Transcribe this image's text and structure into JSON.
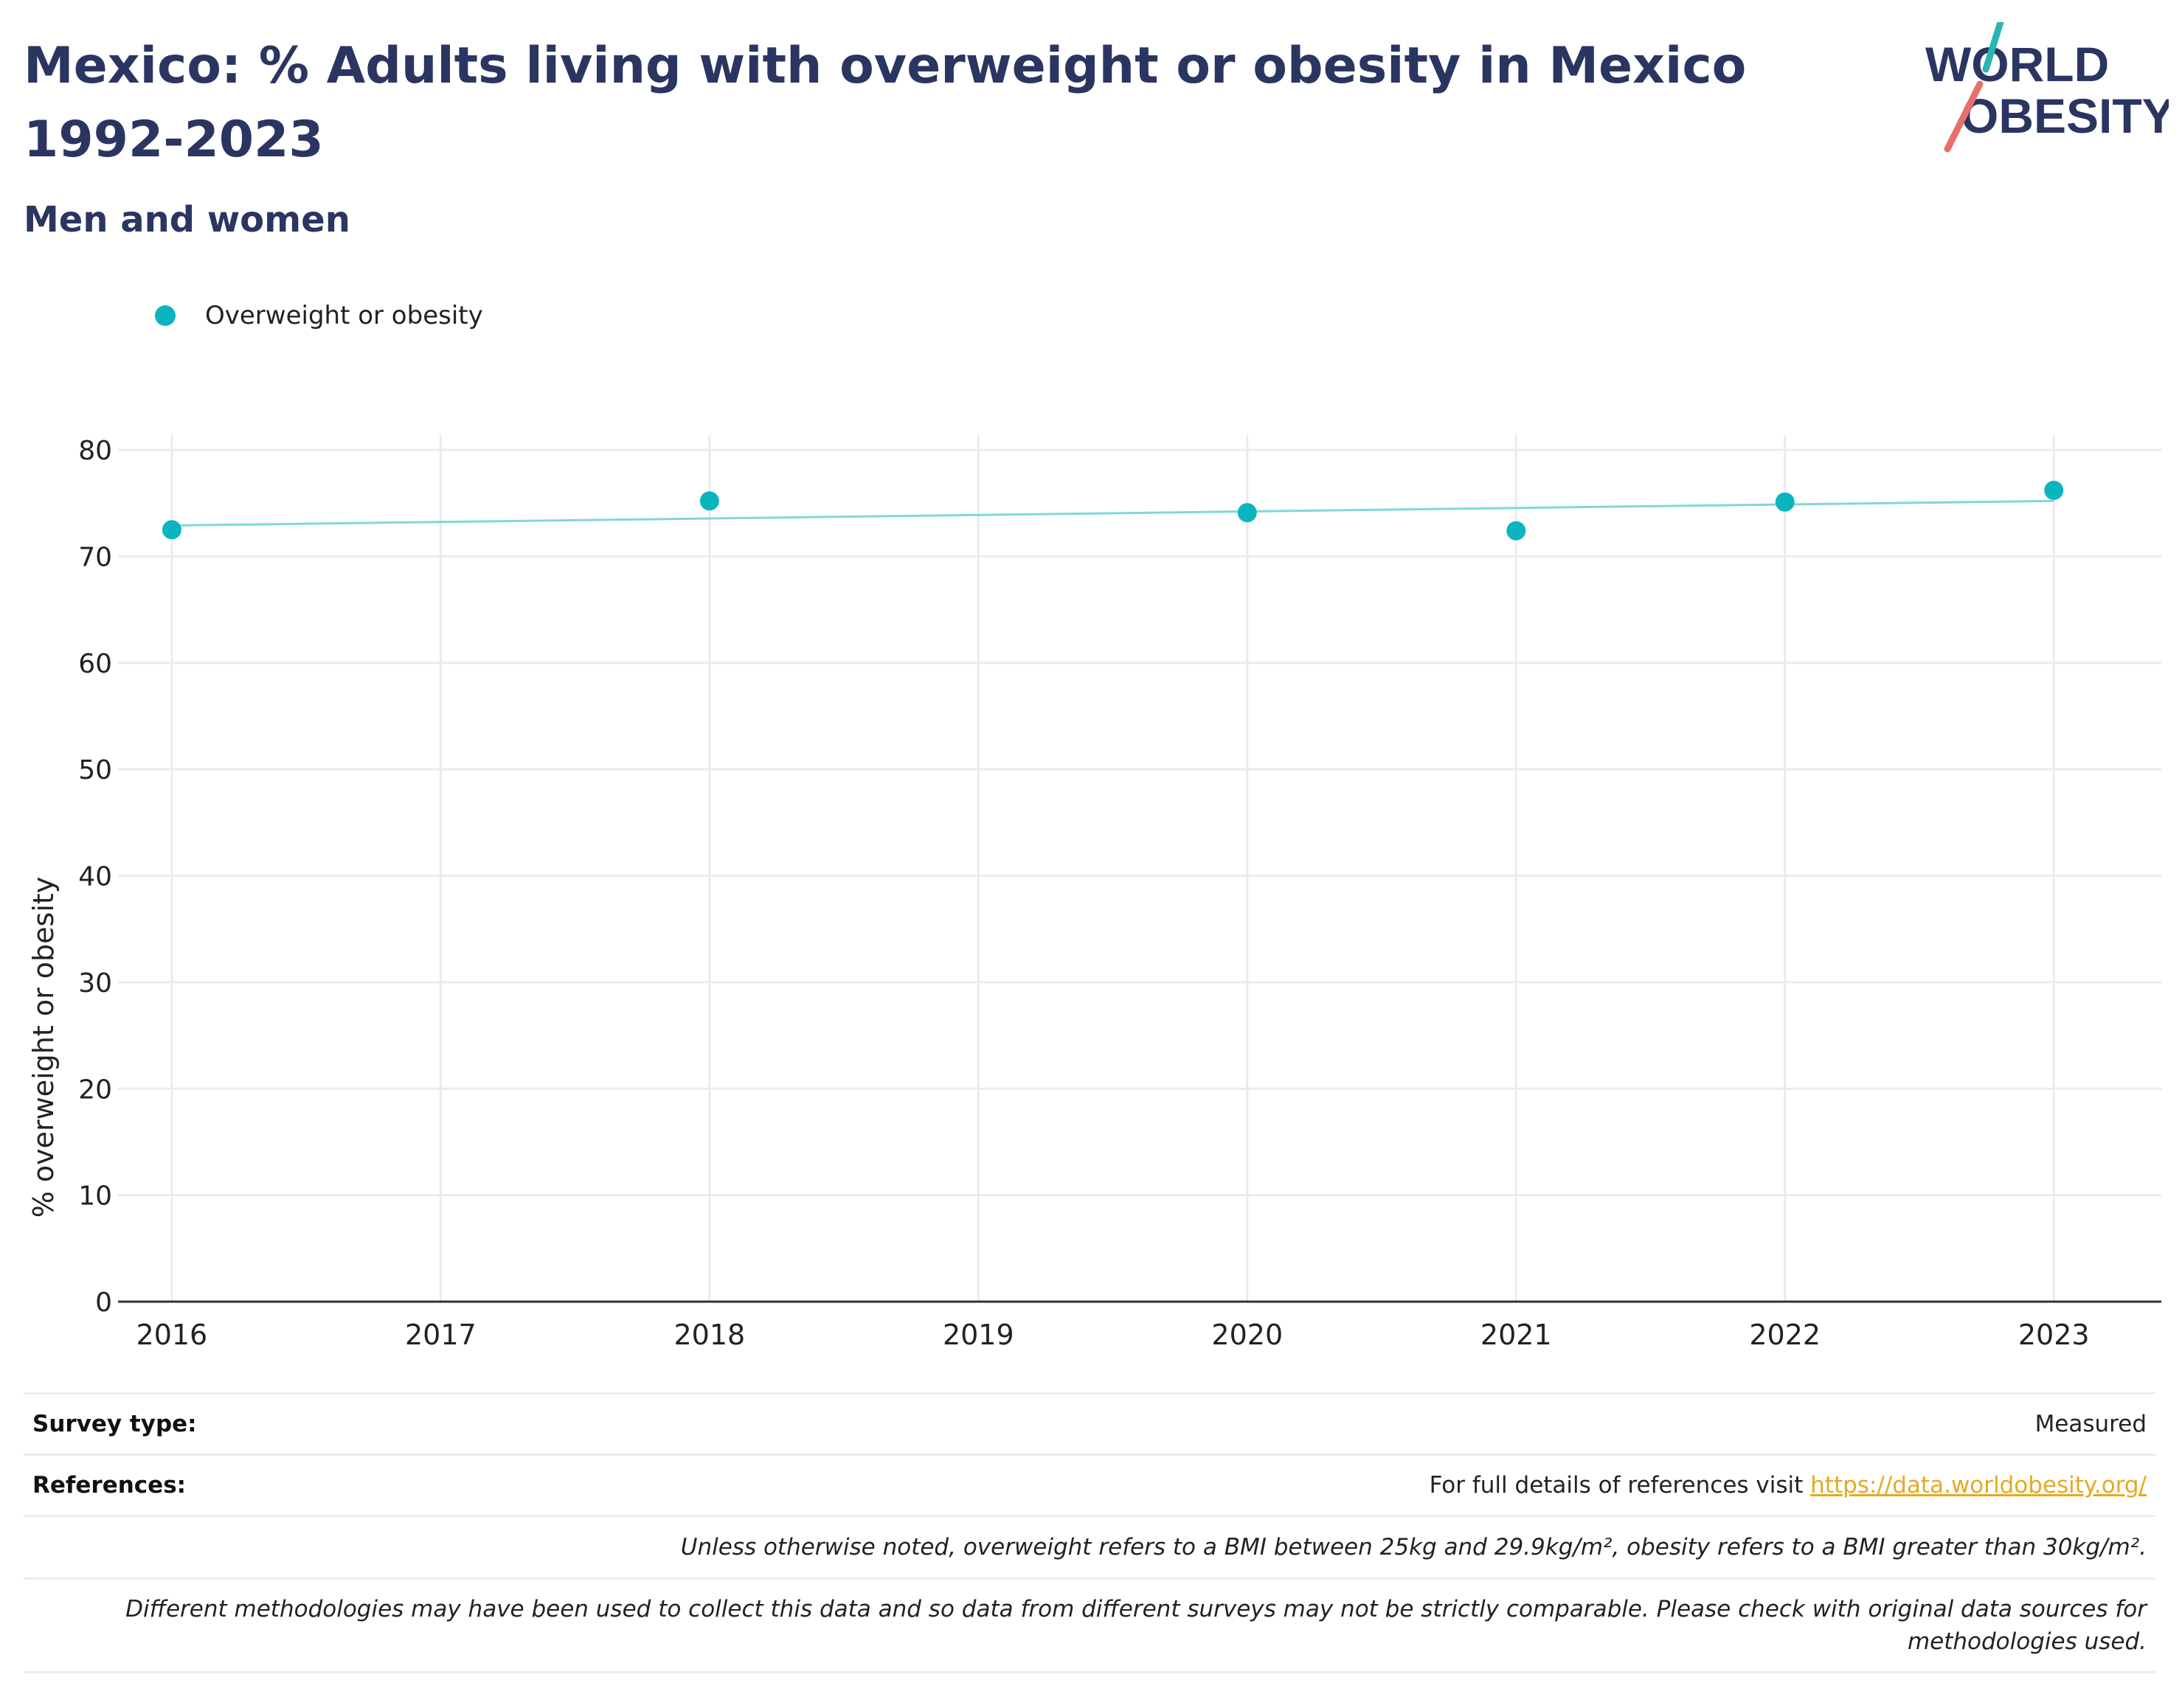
{
  "header": {
    "title": "Mexico: % Adults living with overweight or obesity in Mexico 1992-2023",
    "subtitle": "Men and women"
  },
  "logo": {
    "line1": "WORLD",
    "line2": "OBESITY",
    "brand_navy": "#2a3561",
    "brand_teal": "#2bb5b0",
    "brand_coral": "#e8706a"
  },
  "legend": {
    "series_label": "Overweight or obesity"
  },
  "chart_data": {
    "type": "scatter",
    "title": "",
    "xlabel": "",
    "ylabel": "% overweight or obesity",
    "x": [
      2016,
      2018,
      2020,
      2021,
      2022,
      2023
    ],
    "series": [
      {
        "name": "Overweight or obesity",
        "values": [
          72.5,
          75.2,
          74.1,
          72.4,
          75.1,
          76.2
        ],
        "color": "#0bb5c0"
      }
    ],
    "trendline": {
      "x": [
        2016,
        2023
      ],
      "y": [
        72.9,
        75.2
      ],
      "color": "#7fd8d4"
    },
    "xlim": [
      2015.8,
      2023.4
    ],
    "ylim": [
      0,
      80
    ],
    "xticks": [
      "2016",
      "2017",
      "2018",
      "2019",
      "2020",
      "2021",
      "2022",
      "2023"
    ],
    "yticks": [
      "0",
      "10",
      "20",
      "30",
      "40",
      "50",
      "60",
      "70",
      "80"
    ],
    "grid": true,
    "legend_position": "top-left"
  },
  "info": {
    "survey_type_label": "Survey type:",
    "survey_type_value": "Measured",
    "references_label": "References:",
    "references_text": "For full details of references visit ",
    "references_link": "https://data.worldobesity.org/",
    "note_bmi": "Unless otherwise noted, overweight refers to a BMI between 25kg and 29.9kg/m², obesity refers to a BMI greater than 30kg/m².",
    "note_methods": "Different methodologies may have been used to collect this data and so data from different surveys may not be strictly comparable. Please check with original data sources for methodologies used."
  }
}
